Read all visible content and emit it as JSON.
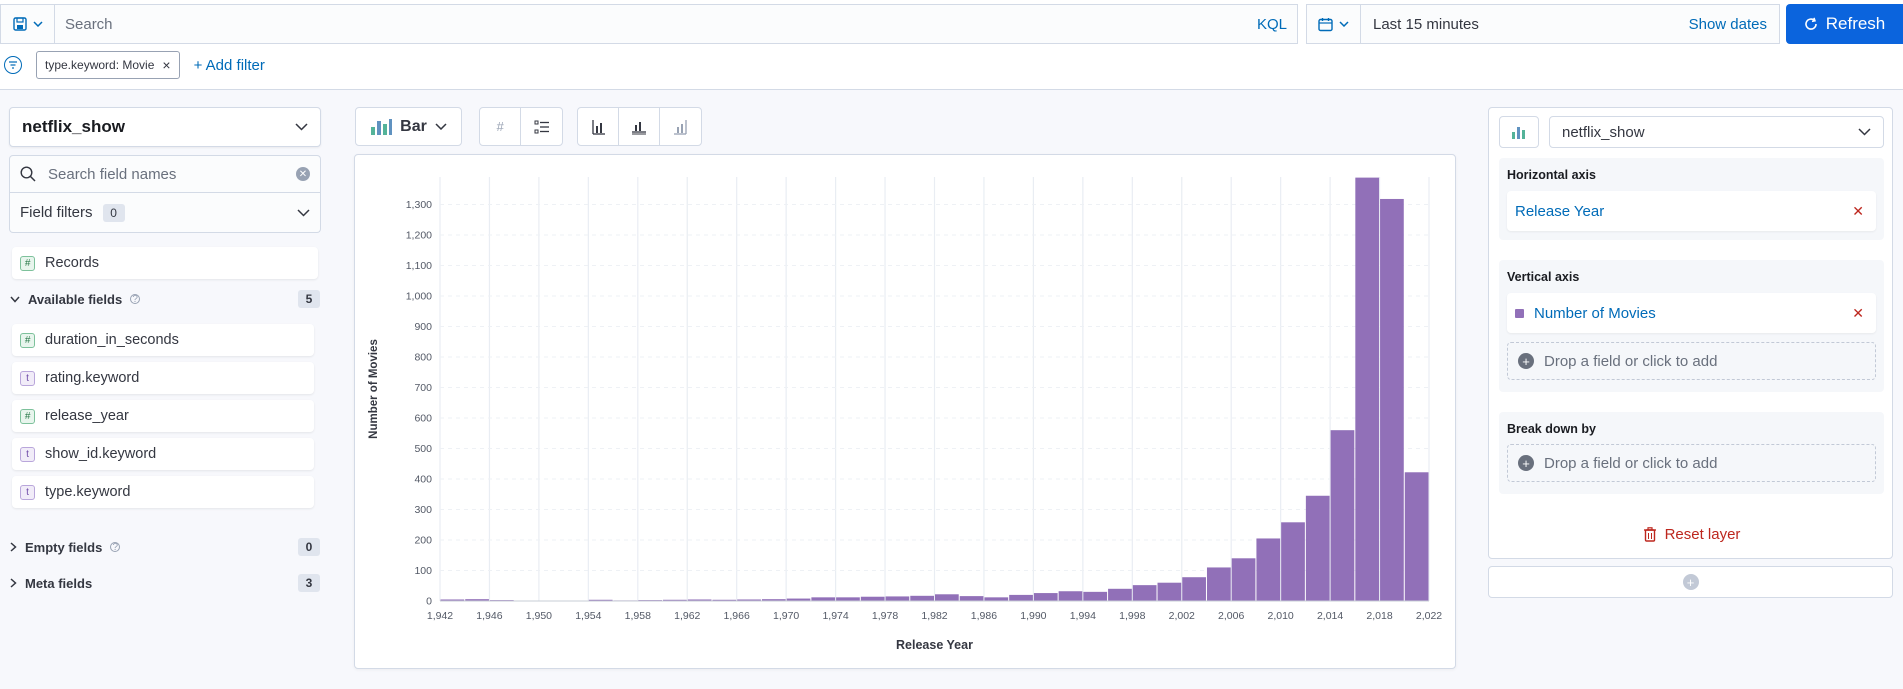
{
  "topbar": {
    "search_placeholder": "Search",
    "kql_label": "KQL",
    "date_range": "Last 15 minutes",
    "show_dates_label": "Show dates",
    "refresh_label": "Refresh"
  },
  "filters": {
    "pill_label": "type.keyword: Movie",
    "add_filter_label": "+ Add filter"
  },
  "sidebar": {
    "index_pattern": "netflix_show",
    "field_search_placeholder": "Search field names",
    "field_filters_label": "Field filters",
    "field_filters_count": "0",
    "records_label": "Records",
    "available_label": "Available fields",
    "available_count": "5",
    "available_fields": [
      {
        "name": "duration_in_seconds",
        "type": "#"
      },
      {
        "name": "rating.keyword",
        "type": "t"
      },
      {
        "name": "release_year",
        "type": "#"
      },
      {
        "name": "show_id.keyword",
        "type": "t"
      },
      {
        "name": "type.keyword",
        "type": "t"
      }
    ],
    "empty_label": "Empty fields",
    "empty_count": "0",
    "meta_label": "Meta fields",
    "meta_count": "3"
  },
  "toolbar": {
    "chart_type_label": "Bar"
  },
  "config": {
    "layer_index": "netflix_show",
    "horizontal_axis_title": "Horizontal axis",
    "horizontal_axis_field": "Release Year",
    "vertical_axis_title": "Vertical axis",
    "vertical_axis_field": "Number of Movies",
    "drop_hint": "Drop a field or click to add",
    "breakdown_title": "Break down by",
    "reset_label": "Reset layer"
  },
  "colors": {
    "bar": "#9170b8",
    "accent": "#006bb8",
    "primary_button": "#0b64dd",
    "danger": "#bd271e"
  },
  "chart_data": {
    "type": "bar",
    "xlabel": "Release Year",
    "ylabel": "Number of Movies",
    "xlim": [
      1942,
      2022
    ],
    "ylim": [
      0,
      1390
    ],
    "x_ticks": [
      "1,942",
      "1,946",
      "1,950",
      "1,954",
      "1,958",
      "1,962",
      "1,966",
      "1,970",
      "1,974",
      "1,978",
      "1,982",
      "1,986",
      "1,990",
      "1,994",
      "1,998",
      "2,002",
      "2,006",
      "2,010",
      "2,014",
      "2,018",
      "2,022"
    ],
    "y_ticks": [
      "0",
      "100",
      "200",
      "300",
      "400",
      "500",
      "600",
      "700",
      "800",
      "900",
      "1,000",
      "1,100",
      "1,200",
      "1,300"
    ],
    "bars": [
      {
        "x": 1942,
        "y": 5
      },
      {
        "x": 1944,
        "y": 6
      },
      {
        "x": 1946,
        "y": 3
      },
      {
        "x": 1954,
        "y": 4
      },
      {
        "x": 1956,
        "y": 2
      },
      {
        "x": 1958,
        "y": 3
      },
      {
        "x": 1960,
        "y": 4
      },
      {
        "x": 1962,
        "y": 5
      },
      {
        "x": 1964,
        "y": 4
      },
      {
        "x": 1966,
        "y": 5
      },
      {
        "x": 1968,
        "y": 6
      },
      {
        "x": 1970,
        "y": 8
      },
      {
        "x": 1972,
        "y": 12
      },
      {
        "x": 1974,
        "y": 12
      },
      {
        "x": 1976,
        "y": 14
      },
      {
        "x": 1978,
        "y": 15
      },
      {
        "x": 1980,
        "y": 17
      },
      {
        "x": 1982,
        "y": 22
      },
      {
        "x": 1984,
        "y": 16
      },
      {
        "x": 1986,
        "y": 12
      },
      {
        "x": 1988,
        "y": 20
      },
      {
        "x": 1990,
        "y": 26
      },
      {
        "x": 1992,
        "y": 32
      },
      {
        "x": 1994,
        "y": 30
      },
      {
        "x": 1996,
        "y": 40
      },
      {
        "x": 1998,
        "y": 52
      },
      {
        "x": 2000,
        "y": 60
      },
      {
        "x": 2002,
        "y": 78
      },
      {
        "x": 2004,
        "y": 110
      },
      {
        "x": 2006,
        "y": 140
      },
      {
        "x": 2008,
        "y": 205
      },
      {
        "x": 2010,
        "y": 258
      },
      {
        "x": 2012,
        "y": 345
      },
      {
        "x": 2014,
        "y": 560
      },
      {
        "x": 2016,
        "y": 1388
      },
      {
        "x": 2018,
        "y": 1318
      },
      {
        "x": 2020,
        "y": 422
      }
    ]
  }
}
